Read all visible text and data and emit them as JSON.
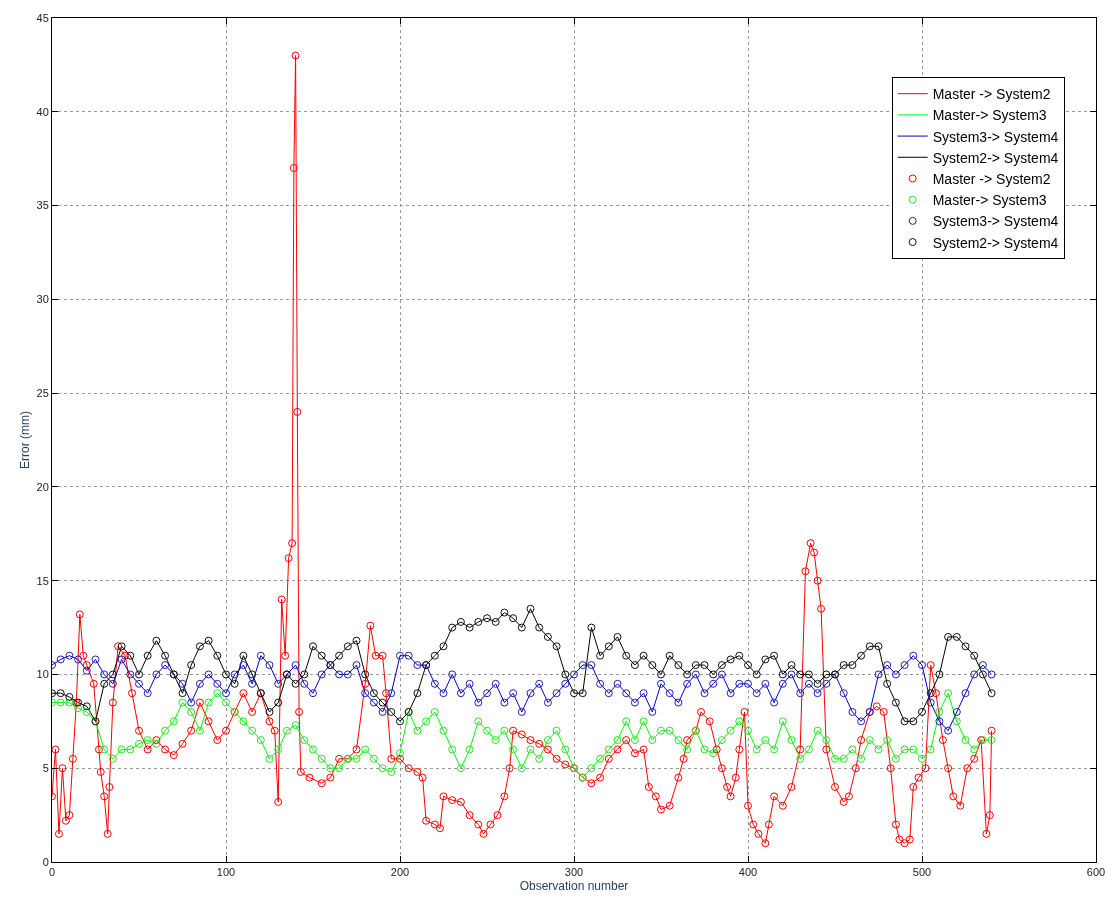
{
  "chart_data": {
    "type": "line",
    "xlabel": "Observation number",
    "ylabel": "Error (mm)",
    "xlim": [
      0,
      600
    ],
    "xticks": [
      0,
      100,
      200,
      300,
      400,
      500,
      600
    ],
    "ylim": [
      0,
      45
    ],
    "yticks": [
      0,
      5,
      10,
      15,
      20,
      25,
      30,
      35,
      40,
      45
    ],
    "grid": true,
    "legend": "top right",
    "x": [
      0,
      5,
      10,
      15,
      20,
      25,
      30,
      35,
      40,
      45,
      50,
      55,
      60,
      65,
      70,
      75,
      80,
      85,
      90,
      95,
      100,
      105,
      110,
      115,
      120,
      125,
      130,
      135,
      140,
      145,
      150,
      155,
      160,
      165,
      170,
      175,
      180,
      185,
      190,
      195,
      200,
      205,
      210,
      215,
      220,
      225,
      230,
      235,
      240,
      245,
      250,
      255,
      260,
      265,
      270,
      275,
      280,
      285,
      290,
      295,
      300,
      305,
      310,
      315,
      320,
      325,
      330,
      335,
      340,
      345,
      350,
      355,
      360,
      365,
      370,
      375,
      380,
      385,
      390,
      395,
      400,
      405,
      410,
      415,
      420,
      425,
      430,
      435,
      440,
      445,
      450,
      455,
      460,
      465,
      470,
      475,
      480,
      485,
      490,
      495,
      500,
      505,
      510,
      515,
      520,
      525,
      530,
      535,
      540
    ],
    "series": [
      {
        "name": "Master -> System2",
        "color": "#ff0000",
        "line_style": "solid",
        "x": [
          0,
          2,
          4,
          6,
          8,
          10,
          12,
          14,
          16,
          18,
          20,
          24,
          27,
          28,
          30,
          32,
          33,
          35,
          38,
          42,
          46,
          50,
          55,
          60,
          65,
          70,
          75,
          80,
          85,
          90,
          95,
          100,
          105,
          110,
          115,
          120,
          125,
          128,
          130,
          132,
          134,
          136,
          138,
          139,
          140,
          141,
          142,
          143,
          148,
          155,
          160,
          165,
          170,
          175,
          180,
          183,
          186,
          190,
          192,
          195,
          200,
          205,
          210,
          213,
          215,
          220,
          223,
          225,
          230,
          235,
          240,
          245,
          248,
          252,
          256,
          260,
          263,
          265,
          270,
          275,
          280,
          285,
          290,
          295,
          300,
          305,
          310,
          315,
          320,
          325,
          330,
          335,
          340,
          343,
          347,
          350,
          355,
          360,
          363,
          365,
          370,
          373,
          378,
          382,
          385,
          388,
          390,
          393,
          395,
          398,
          400,
          403,
          406,
          410,
          412,
          415,
          420,
          425,
          430,
          433,
          436,
          438,
          440,
          442,
          445,
          450,
          455,
          458,
          462,
          465,
          470,
          474,
          478,
          482,
          485,
          487,
          490,
          493,
          495,
          498,
          502,
          505,
          508,
          512,
          515,
          518,
          522,
          526,
          530,
          534,
          537,
          539,
          540
        ],
        "values": [
          3.5,
          6,
          1.5,
          5,
          2.2,
          2.5,
          5.5,
          8.5,
          13.2,
          11,
          10.5,
          9.5,
          6,
          4.8,
          3.5,
          1.5,
          4,
          8.5,
          11.5,
          11,
          9,
          7,
          6,
          6.5,
          6,
          5.7,
          6.3,
          7,
          8.5,
          7.5,
          6.5,
          7,
          8,
          9,
          8,
          9,
          7.5,
          7,
          3.2,
          14,
          11,
          16.2,
          17,
          37,
          43,
          24,
          8,
          4.8,
          4.5,
          4.2,
          4.5,
          5.5,
          5.5,
          6,
          9.5,
          12.6,
          11,
          11,
          9,
          5.5,
          5.5,
          5,
          4.8,
          4.5,
          2.2,
          2,
          1.8,
          3.5,
          3.3,
          3.2,
          2.5,
          2,
          1.5,
          2,
          2.5,
          3.5,
          5,
          7,
          6.8,
          6.5,
          6.3,
          6,
          5.5,
          5.2,
          5,
          4.5,
          4.2,
          4.5,
          5.5,
          6,
          6.5,
          5.8,
          6,
          4,
          3.5,
          2.8,
          3,
          4.5,
          5.5,
          6.5,
          7,
          8,
          7.5,
          6,
          5,
          4,
          3.5,
          4.5,
          6,
          8,
          3,
          2,
          1.5,
          1,
          2,
          3.5,
          3,
          4,
          6,
          15.5,
          17,
          16.5,
          15,
          13.5,
          6,
          4,
          3.2,
          3.5,
          5,
          6.5,
          8,
          8.3,
          8,
          5,
          2,
          1.2,
          1,
          1.2,
          4,
          4.5,
          5,
          10.5,
          9,
          6.5,
          5,
          3.5,
          3,
          5,
          5.5,
          6.5,
          1.5,
          2.5,
          7
        ]
      },
      {
        "name": "Master-> System3",
        "color": "#00ff00",
        "line_style": "solid",
        "values": [
          8.5,
          8.5,
          8.5,
          8.2,
          8,
          7.5,
          6,
          5.5,
          6,
          6,
          6.3,
          6.5,
          6.3,
          7,
          7.5,
          8.5,
          8,
          7,
          8.5,
          9,
          8.5,
          8,
          7.5,
          7,
          6.5,
          5.5,
          6,
          7,
          7.3,
          6.5,
          6,
          5.5,
          5,
          5,
          5.5,
          5.5,
          6,
          5.5,
          5,
          4.8,
          5.8,
          8,
          7,
          7.5,
          8,
          7,
          6,
          5,
          6,
          7.5,
          7,
          6.5,
          7,
          6,
          5,
          6,
          5.5,
          6.5,
          7,
          6,
          5,
          4.5,
          5,
          5.5,
          6,
          6.5,
          7.5,
          6.5,
          7.5,
          6.5,
          7,
          7,
          6.5,
          6,
          7,
          6,
          5.8,
          6.5,
          7,
          7.5,
          7,
          6,
          6.5,
          6,
          7.5,
          6.5,
          5.5,
          6,
          7,
          6.5,
          5.5,
          5.5,
          6,
          5.5,
          6.5,
          6,
          6.5,
          5.5,
          6,
          6,
          5.5,
          6,
          8,
          9,
          7.5,
          6.5,
          6,
          6.5,
          6.5
        ]
      },
      {
        "name": "System3-> System4",
        "color": "#0000cc",
        "line_style": "solid",
        "values": [
          10.5,
          10.8,
          11,
          10.8,
          10.2,
          10.8,
          10,
          9.5,
          10.8,
          10,
          9.5,
          9,
          10,
          10.5,
          10,
          9.5,
          8.5,
          9.5,
          10,
          9.5,
          9,
          10,
          10.5,
          9.5,
          11,
          10.5,
          9.5,
          10,
          10.5,
          9.5,
          9,
          10,
          10.5,
          10,
          10,
          10.5,
          9,
          8.5,
          8,
          9,
          11,
          11,
          10.5,
          10.5,
          9.5,
          9,
          10,
          9,
          9.5,
          8.5,
          9,
          9.5,
          8.5,
          9,
          8,
          9,
          9.5,
          8.5,
          9,
          9.5,
          10,
          10.5,
          10.5,
          9.5,
          9,
          9.5,
          9,
          8.5,
          9,
          8,
          9.5,
          9,
          8.5,
          9.5,
          10,
          9,
          9.5,
          10,
          9,
          9.5,
          9.5,
          9,
          9.5,
          8.5,
          9.5,
          10,
          9,
          9.5,
          9,
          9.5,
          10,
          9,
          8,
          7.5,
          8,
          10,
          10.5,
          10,
          10.5,
          11,
          10.5,
          8.5,
          7.5,
          7,
          8,
          9,
          10,
          10.5,
          10
        ]
      },
      {
        "name": "System2-> System4",
        "color": "#000000",
        "line_style": "solid",
        "values": [
          9,
          9,
          8.8,
          8.5,
          8.3,
          7.5,
          9.5,
          10,
          11.5,
          11,
          10,
          11,
          11.8,
          11,
          10,
          9,
          10.5,
          11.5,
          11.8,
          11,
          10,
          9.5,
          11,
          10,
          9,
          8,
          8.5,
          10,
          9.5,
          10,
          11.5,
          11,
          10.5,
          11,
          11.5,
          11.8,
          10,
          9,
          8.5,
          8,
          7.5,
          8,
          9,
          10.5,
          11,
          11.5,
          12.5,
          12.8,
          12.5,
          12.8,
          13,
          12.8,
          13.3,
          13,
          12.5,
          13.5,
          12.5,
          12,
          11.5,
          10,
          9,
          9,
          12.5,
          11,
          11.5,
          12,
          11,
          10.5,
          11,
          10.5,
          10,
          11,
          10.5,
          10,
          10.5,
          10.5,
          10,
          10.5,
          10.8,
          11,
          10.5,
          10,
          10.8,
          11,
          10,
          10.5,
          10,
          10,
          9.5,
          10,
          10,
          10.5,
          10.5,
          11,
          11.5,
          11.5,
          9.5,
          8.5,
          7.5,
          7.5,
          8,
          9,
          10,
          12,
          12,
          11.5,
          11,
          10,
          9
        ]
      },
      {
        "name": "Master -> System2",
        "color": "#ff0000",
        "type": "scatter",
        "marker": "circle",
        "x": [
          0,
          2,
          4,
          6,
          8,
          10,
          12,
          14,
          16,
          18,
          20,
          24,
          27,
          28,
          30,
          32,
          33,
          35,
          38,
          42,
          46,
          50,
          55,
          60,
          65,
          70,
          75,
          80,
          85,
          90,
          95,
          100,
          105,
          110,
          115,
          120,
          125,
          128,
          130,
          132,
          134,
          136,
          138,
          139,
          140,
          141,
          142,
          143,
          148,
          155,
          160,
          165,
          170,
          175,
          180,
          183,
          186,
          190,
          192,
          195,
          200,
          205,
          210,
          213,
          215,
          220,
          223,
          225,
          230,
          235,
          240,
          245,
          248,
          252,
          256,
          260,
          263,
          265,
          270,
          275,
          280,
          285,
          290,
          295,
          300,
          305,
          310,
          315,
          320,
          325,
          330,
          335,
          340,
          343,
          347,
          350,
          355,
          360,
          363,
          365,
          370,
          373,
          378,
          382,
          385,
          388,
          390,
          393,
          395,
          398,
          400,
          403,
          406,
          410,
          412,
          415,
          420,
          425,
          430,
          433,
          436,
          438,
          440,
          442,
          445,
          450,
          455,
          458,
          462,
          465,
          470,
          474,
          478,
          482,
          485,
          487,
          490,
          493,
          495,
          498,
          502,
          505,
          508,
          512,
          515,
          518,
          522,
          526,
          530,
          534,
          537,
          539,
          540
        ],
        "values": [
          3.5,
          6,
          1.5,
          5,
          2.2,
          2.5,
          5.5,
          8.5,
          13.2,
          11,
          10.5,
          9.5,
          6,
          4.8,
          3.5,
          1.5,
          4,
          8.5,
          11.5,
          11,
          9,
          7,
          6,
          6.5,
          6,
          5.7,
          6.3,
          7,
          8.5,
          7.5,
          6.5,
          7,
          8,
          9,
          8,
          9,
          7.5,
          7,
          3.2,
          14,
          11,
          16.2,
          17,
          37,
          43,
          24,
          8,
          4.8,
          4.5,
          4.2,
          4.5,
          5.5,
          5.5,
          6,
          9.5,
          12.6,
          11,
          11,
          9,
          5.5,
          5.5,
          5,
          4.8,
          4.5,
          2.2,
          2,
          1.8,
          3.5,
          3.3,
          3.2,
          2.5,
          2,
          1.5,
          2,
          2.5,
          3.5,
          5,
          7,
          6.8,
          6.5,
          6.3,
          6,
          5.5,
          5.2,
          5,
          4.5,
          4.2,
          4.5,
          5.5,
          6,
          6.5,
          5.8,
          6,
          4,
          3.5,
          2.8,
          3,
          4.5,
          5.5,
          6.5,
          7,
          8,
          7.5,
          6,
          5,
          4,
          3.5,
          4.5,
          6,
          8,
          3,
          2,
          1.5,
          1,
          2,
          3.5,
          3,
          4,
          6,
          15.5,
          17,
          16.5,
          15,
          13.5,
          6,
          4,
          3.2,
          3.5,
          5,
          6.5,
          8,
          8.3,
          8,
          5,
          2,
          1.2,
          1,
          1.2,
          4,
          4.5,
          5,
          10.5,
          9,
          6.5,
          5,
          3.5,
          3,
          5,
          5.5,
          6.5,
          1.5,
          2.5,
          7
        ]
      },
      {
        "name": "Master-> System3",
        "color": "#33dd33",
        "type": "scatter",
        "marker": "circle",
        "values": [
          8.5,
          8.5,
          8.5,
          8.2,
          8,
          7.5,
          6,
          5.5,
          6,
          6,
          6.3,
          6.5,
          6.3,
          7,
          7.5,
          8.5,
          8,
          7,
          8.5,
          9,
          8.5,
          8,
          7.5,
          7,
          6.5,
          5.5,
          6,
          7,
          7.3,
          6.5,
          6,
          5.5,
          5,
          5,
          5.5,
          5.5,
          6,
          5.5,
          5,
          4.8,
          5.8,
          8,
          7,
          7.5,
          8,
          7,
          6,
          5,
          6,
          7.5,
          7,
          6.5,
          7,
          6,
          5,
          6,
          5.5,
          6.5,
          7,
          6,
          5,
          4.5,
          5,
          5.5,
          6,
          6.5,
          7.5,
          6.5,
          7.5,
          6.5,
          7,
          7,
          6.5,
          6,
          7,
          6,
          5.8,
          6.5,
          7,
          7.5,
          7,
          6,
          6.5,
          6,
          7.5,
          6.5,
          5.5,
          6,
          7,
          6.5,
          5.5,
          5.5,
          6,
          5.5,
          6.5,
          6,
          6.5,
          5.5,
          6,
          6,
          5.5,
          6,
          8,
          9,
          7.5,
          6.5,
          6,
          6.5,
          6.5
        ]
      },
      {
        "name": "System3-> System4",
        "color": "#2222aa",
        "type": "scatter",
        "marker": "circle",
        "values": [
          10.5,
          10.8,
          11,
          10.8,
          10.2,
          10.8,
          10,
          9.5,
          10.8,
          10,
          9.5,
          9,
          10,
          10.5,
          10,
          9.5,
          8.5,
          9.5,
          10,
          9.5,
          9,
          10,
          10.5,
          9.5,
          11,
          10.5,
          9.5,
          10,
          10.5,
          9.5,
          9,
          10,
          10.5,
          10,
          10,
          10.5,
          9,
          8.5,
          8,
          9,
          11,
          11,
          10.5,
          10.5,
          9.5,
          9,
          10,
          9,
          9.5,
          8.5,
          9,
          9.5,
          8.5,
          9,
          8,
          9,
          9.5,
          8.5,
          9,
          9.5,
          10,
          10.5,
          10.5,
          9.5,
          9,
          9.5,
          9,
          8.5,
          9,
          8,
          9.5,
          9,
          8.5,
          9.5,
          10,
          9,
          9.5,
          10,
          9,
          9.5,
          9.5,
          9,
          9.5,
          8.5,
          9.5,
          10,
          9,
          9.5,
          9,
          9.5,
          10,
          9,
          8,
          7.5,
          8,
          10,
          10.5,
          10,
          10.5,
          11,
          10.5,
          8.5,
          7.5,
          7,
          8,
          9,
          10,
          10.5,
          10
        ]
      },
      {
        "name": "System2-> System4",
        "color": "#111111",
        "type": "scatter",
        "marker": "circle",
        "values": [
          9,
          9,
          8.8,
          8.5,
          8.3,
          7.5,
          9.5,
          10,
          11.5,
          11,
          10,
          11,
          11.8,
          11,
          10,
          9,
          10.5,
          11.5,
          11.8,
          11,
          10,
          9.5,
          11,
          10,
          9,
          8,
          8.5,
          10,
          9.5,
          10,
          11.5,
          11,
          10.5,
          11,
          11.5,
          11.8,
          10,
          9,
          8.5,
          8,
          7.5,
          8,
          9,
          10.5,
          11,
          11.5,
          12.5,
          12.8,
          12.5,
          12.8,
          13,
          12.8,
          13.3,
          13,
          12.5,
          13.5,
          12.5,
          12,
          11.5,
          10,
          9,
          9,
          12.5,
          11,
          11.5,
          12,
          11,
          10.5,
          11,
          10.5,
          10,
          11,
          10.5,
          10,
          10.5,
          10.5,
          10,
          10.5,
          10.8,
          11,
          10.5,
          10,
          10.8,
          11,
          10,
          10.5,
          10,
          10,
          9.5,
          10,
          10,
          10.5,
          10.5,
          11,
          11.5,
          11.5,
          9.5,
          8.5,
          7.5,
          7.5,
          8,
          9,
          10,
          12,
          12,
          11.5,
          11,
          10,
          9
        ]
      }
    ]
  }
}
